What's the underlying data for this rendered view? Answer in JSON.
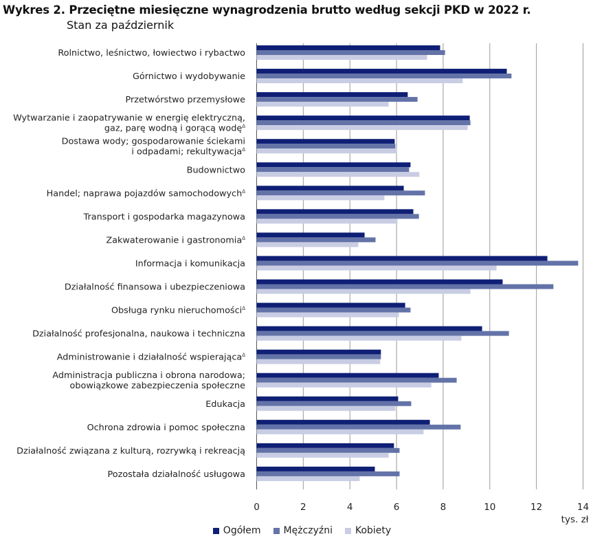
{
  "title": "Wykres 2. Przeciętne miesięczne wynagrodzenia brutto według sekcji PKD w 2022 r.",
  "subtitle": "Stan za październik",
  "chart_data": {
    "type": "bar",
    "orientation": "horizontal",
    "title": "Wykres 2. Przeciętne miesięczne wynagrodzenia brutto według sekcji PKD w 2022 r.",
    "subtitle": "Stan za październik",
    "xlabel": "tys. zł",
    "ylabel": "",
    "xlim": [
      0,
      14
    ],
    "xticks": [
      0,
      2,
      4,
      6,
      8,
      10,
      12,
      14
    ],
    "grid": true,
    "legend_position": "bottom",
    "categories": [
      [
        "Rolnictwo, leśnictwo, łowiectwo i rybactwo"
      ],
      [
        "Górnictwo i wydobywanie"
      ],
      [
        "Przetwórstwo przemysłowe"
      ],
      [
        "Wytwarzanie i zaopatrywanie w energię elektryczną,",
        "gaz, parę  wodną i gorącą wodę^"
      ],
      [
        "Dostawa wody; gospodarowanie ściekami",
        "i odpadami; rekultywacja^"
      ],
      [
        "Budownictwo"
      ],
      [
        "Handel; naprawa pojazdów samochodowych^"
      ],
      [
        "Transport i gospodarka magazynowa"
      ],
      [
        "Zakwaterowanie i gastronomia^"
      ],
      [
        "Informacja i komunikacja"
      ],
      [
        "Działalność finansowa i ubezpieczeniowa"
      ],
      [
        "Obsługa rynku nieruchomości^"
      ],
      [
        "Działalność  profesjonalna, naukowa i techniczna"
      ],
      [
        "Administrowanie i działalność wspierająca^"
      ],
      [
        "Administracja publiczna i obrona narodowa;",
        "obowiązkowe zabezpieczenia społeczne"
      ],
      [
        "Edukacja"
      ],
      [
        "Ochrona zdrowia i pomoc społeczna"
      ],
      [
        "Działalność związana z kulturą, rozrywką i rekreacją"
      ],
      [
        "Pozostała działalność usługowa"
      ]
    ],
    "series": [
      {
        "name": "Ogółem",
        "color": "#0f1f75",
        "values": [
          7.87,
          10.73,
          6.48,
          9.14,
          5.92,
          6.6,
          6.31,
          6.72,
          4.63,
          12.47,
          10.55,
          6.37,
          9.67,
          5.33,
          7.81,
          6.07,
          7.43,
          5.89,
          5.07
        ]
      },
      {
        "name": "Mężczyźni",
        "color": "#6373a8",
        "values": [
          8.08,
          10.93,
          6.9,
          9.17,
          5.95,
          6.54,
          7.22,
          6.96,
          5.1,
          13.79,
          12.73,
          6.6,
          10.82,
          5.33,
          8.58,
          6.63,
          8.75,
          6.13,
          6.13
        ]
      },
      {
        "name": "Kobiety",
        "color": "#c9cde3",
        "values": [
          7.31,
          8.84,
          5.66,
          9.05,
          6.01,
          6.98,
          5.48,
          6.04,
          4.36,
          10.29,
          9.17,
          6.1,
          8.78,
          5.3,
          7.49,
          5.95,
          7.16,
          5.66,
          4.42
        ]
      }
    ]
  }
}
